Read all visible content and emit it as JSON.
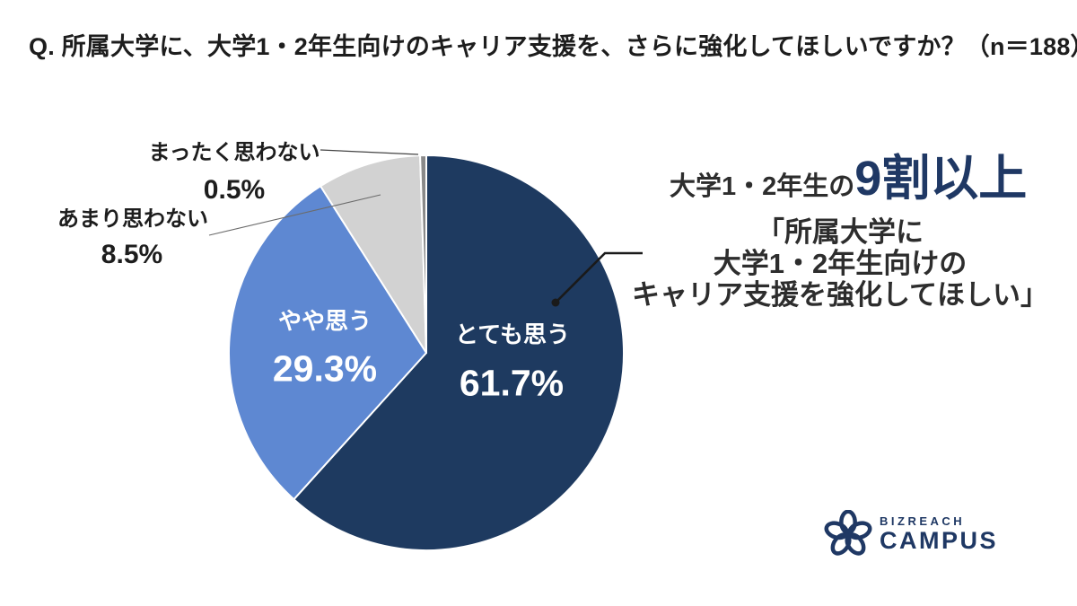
{
  "chart_data": {
    "type": "pie",
    "title": "Q. 所属大学に、大学1・2年生向けのキャリア支援を、さらに強化してほしいですか？（n＝188）",
    "sample_size": 188,
    "start_angle_deg": 0,
    "direction": "clockwise",
    "slices": [
      {
        "key": "very-much",
        "label": "とても思う",
        "value": 61.7,
        "pct_label": "61.7%",
        "color": "#1E3A60",
        "label_placement": "inside"
      },
      {
        "key": "somewhat",
        "label": "やや思う",
        "value": 29.3,
        "pct_label": "29.3%",
        "color": "#5E88D2",
        "label_placement": "inside"
      },
      {
        "key": "not-much",
        "label": "あまり思わない",
        "value": 8.5,
        "pct_label": "8.5%",
        "color": "#D2D2D2",
        "label_placement": "outside"
      },
      {
        "key": "not-at-all",
        "label": "まったく思わない",
        "value": 0.5,
        "pct_label": "0.5%",
        "color": "#8A8A8A",
        "label_placement": "outside"
      }
    ]
  },
  "annotation": {
    "headline_prefix": "大学1・2年生の",
    "headline_emphasis": "9割以上",
    "quote_line1": "「所属大学に",
    "quote_line2": "大学1・2年生向けの",
    "quote_line3": "キャリア支援を強化してほしい」"
  },
  "logo": {
    "brand_top": "BIZREACH",
    "brand_bottom": "CAMPUS"
  },
  "colors": {
    "navy": "#1E3A60",
    "light_blue": "#5E88D2",
    "light_gray": "#D2D2D2",
    "sliver_gray": "#8A8A8A",
    "text_black": "#1d1d1d",
    "emphasis_navy": "#1F3864"
  }
}
